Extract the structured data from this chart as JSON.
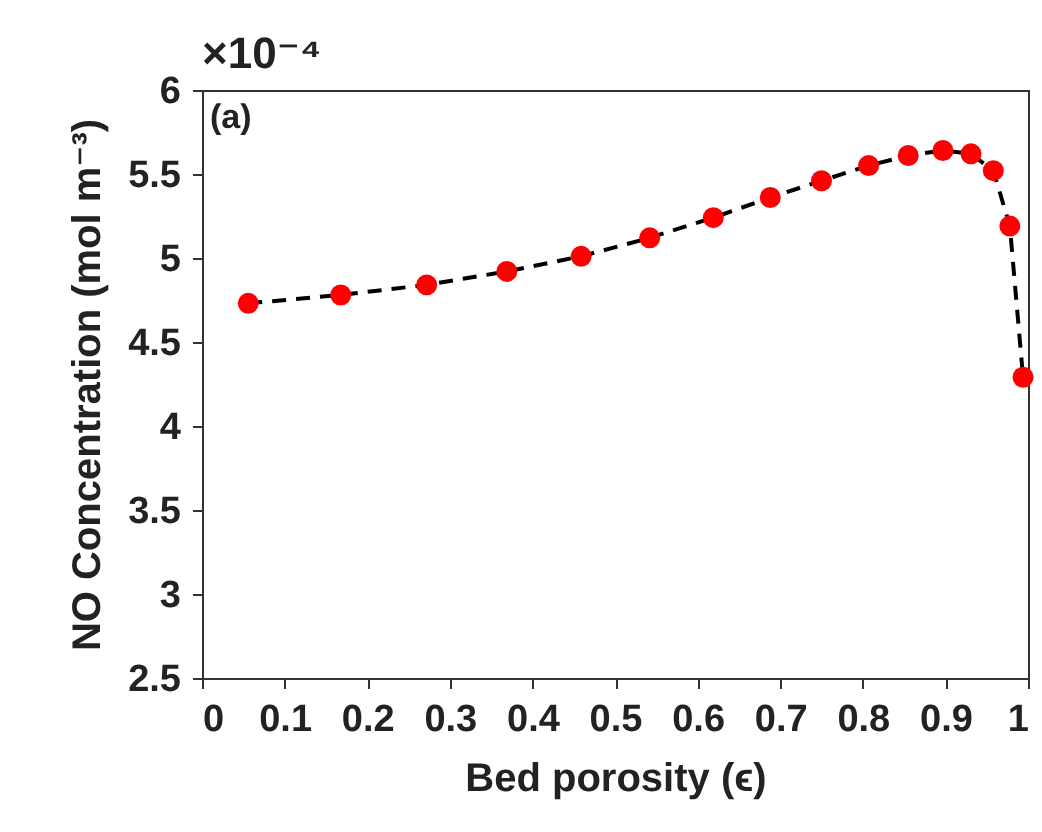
{
  "chart_data": {
    "type": "line",
    "xlabel": "Bed porosity (ϵ)",
    "ylabel": "NO Concentration (mol m⁻³)",
    "annotations": [
      "×10⁻⁴",
      "(a)"
    ],
    "x": [
      0.056,
      0.168,
      0.272,
      0.369,
      0.459,
      0.542,
      0.619,
      0.688,
      0.75,
      0.807,
      0.855,
      0.897,
      0.931,
      0.958,
      0.978,
      0.994
    ],
    "series": [
      {
        "color": "#000000",
        "line_style": "dashed",
        "values": [
          4.73,
          4.78,
          4.84,
          4.92,
          5.01,
          5.12,
          5.24,
          5.36,
          5.46,
          5.55,
          5.61,
          5.64,
          5.62,
          5.52,
          5.19,
          4.29
        ]
      },
      {
        "type": "scatter",
        "color": "#ff0000",
        "marker": "circle",
        "values": [
          4.73,
          4.78,
          4.84,
          4.92,
          5.01,
          5.12,
          5.24,
          5.36,
          5.46,
          5.55,
          5.61,
          5.64,
          5.62,
          5.52,
          5.19,
          4.29
        ]
      }
    ],
    "xlim": [
      0,
      1
    ],
    "xticks": [
      0,
      0.1,
      0.2,
      0.3,
      0.4,
      0.5,
      0.6,
      0.7,
      0.8,
      0.9,
      1
    ],
    "ylim": [
      2.5,
      6
    ],
    "yticks": [
      2.5,
      3,
      3.5,
      4,
      4.5,
      5,
      5.5,
      6
    ],
    "grid": false
  }
}
